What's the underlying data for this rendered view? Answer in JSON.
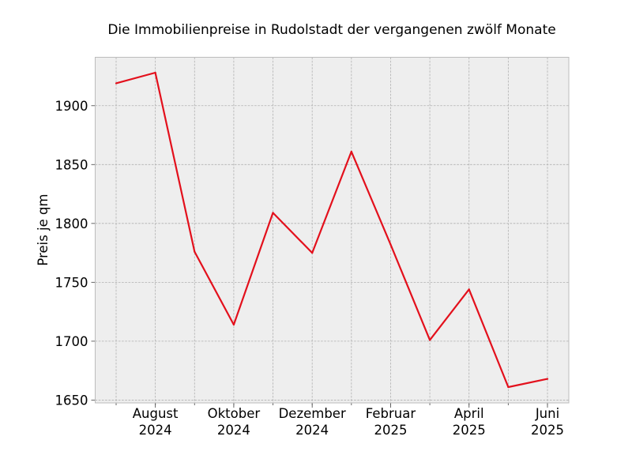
{
  "chart_data": {
    "type": "line",
    "title": "Die Immobilienpreise in Rudolstadt der vergangenen zwölf Monate",
    "xlabel": "",
    "ylabel": "Preis je qm",
    "x": [
      "2024-07",
      "2024-08",
      "2024-09",
      "2024-10",
      "2024-11",
      "2024-12",
      "2025-01",
      "2025-02",
      "2025-03",
      "2025-04",
      "2025-05",
      "2025-06"
    ],
    "series": [
      {
        "values": [
          1919,
          1928,
          1776,
          1714,
          1809,
          1775,
          1861,
          1782,
          1701,
          1744,
          1661,
          1668
        ]
      }
    ],
    "xticks": [
      {
        "x": "2024-08",
        "line1": "August",
        "line2": "2024"
      },
      {
        "x": "2024-10",
        "line1": "Oktober",
        "line2": "2024"
      },
      {
        "x": "2024-12",
        "line1": "Dezember",
        "line2": "2024"
      },
      {
        "x": "2025-02",
        "line1": "Februar",
        "line2": "2025"
      },
      {
        "x": "2025-04",
        "line1": "April",
        "line2": "2025"
      },
      {
        "x": "2025-06",
        "line1": "Juni",
        "line2": "2025"
      }
    ],
    "yticks": [
      1650,
      1700,
      1750,
      1800,
      1850,
      1900
    ],
    "ylim": [
      1647.6,
      1941.1
    ],
    "grid": true,
    "colors": {
      "line": "#e3101c",
      "plot_background": "#eeeeee",
      "frame": "#bcbcbc"
    }
  }
}
